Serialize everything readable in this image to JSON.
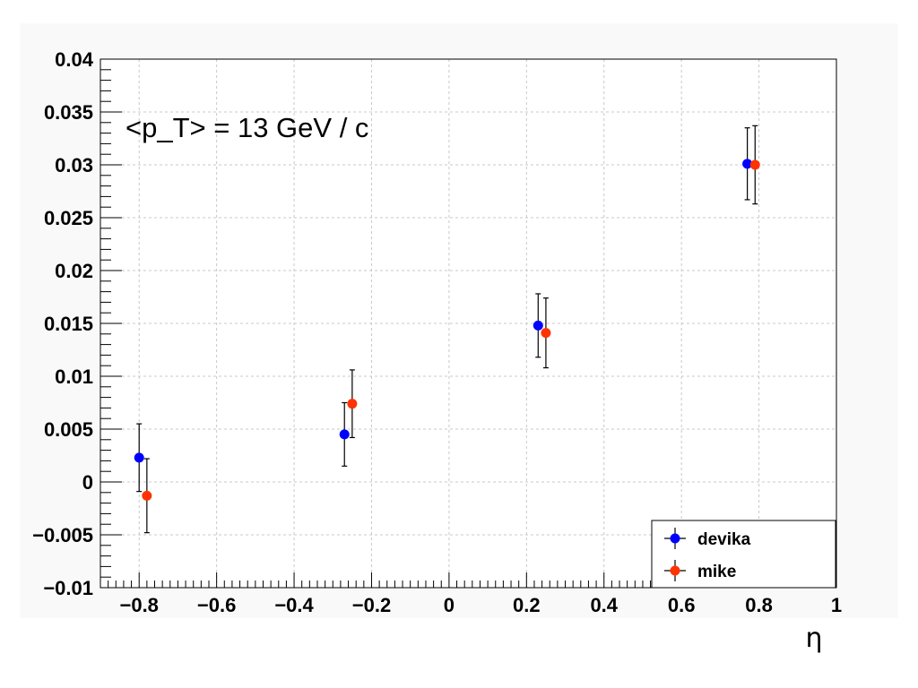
{
  "chart_data": {
    "type": "scatter",
    "title": "",
    "annotation": "<p_T> = 13 GeV / c",
    "xlabel": "η",
    "ylabel": "",
    "xlim": [
      -0.9,
      1.0
    ],
    "ylim": [
      -0.01,
      0.04
    ],
    "x_ticks": [
      {
        "value": -0.8,
        "label": "−0.8"
      },
      {
        "value": -0.6,
        "label": "−0.6"
      },
      {
        "value": -0.4,
        "label": "−0.4"
      },
      {
        "value": -0.2,
        "label": "−0.2"
      },
      {
        "value": 0.0,
        "label": "0"
      },
      {
        "value": 0.2,
        "label": "0.2"
      },
      {
        "value": 0.4,
        "label": "0.4"
      },
      {
        "value": 0.6,
        "label": "0.6"
      },
      {
        "value": 0.8,
        "label": "0.8"
      },
      {
        "value": 1.0,
        "label": "1"
      }
    ],
    "y_ticks": [
      {
        "value": -0.01,
        "label": "−0.01"
      },
      {
        "value": -0.005,
        "label": "−0.005"
      },
      {
        "value": 0.0,
        "label": "0"
      },
      {
        "value": 0.005,
        "label": "0.005"
      },
      {
        "value": 0.01,
        "label": "0.01"
      },
      {
        "value": 0.015,
        "label": "0.015"
      },
      {
        "value": 0.02,
        "label": "0.02"
      },
      {
        "value": 0.025,
        "label": "0.025"
      },
      {
        "value": 0.03,
        "label": "0.03"
      },
      {
        "value": 0.035,
        "label": "0.035"
      },
      {
        "value": 0.04,
        "label": "0.04"
      }
    ],
    "grid": true,
    "legend_position": "bottom-right",
    "series": [
      {
        "name": "devika",
        "color": "#0000ff",
        "points": [
          {
            "x": -0.8,
            "y": 0.0023,
            "err": 0.0032
          },
          {
            "x": -0.27,
            "y": 0.0045,
            "err": 0.003
          },
          {
            "x": 0.23,
            "y": 0.0148,
            "err": 0.003
          },
          {
            "x": 0.77,
            "y": 0.0301,
            "err": 0.0034
          }
        ]
      },
      {
        "name": "mike",
        "color": "#ff3300",
        "points": [
          {
            "x": -0.78,
            "y": -0.0013,
            "err": 0.0035
          },
          {
            "x": -0.25,
            "y": 0.0074,
            "err": 0.0032
          },
          {
            "x": 0.25,
            "y": 0.0141,
            "err": 0.0033
          },
          {
            "x": 0.79,
            "y": 0.03,
            "err": 0.0037
          }
        ]
      }
    ]
  }
}
